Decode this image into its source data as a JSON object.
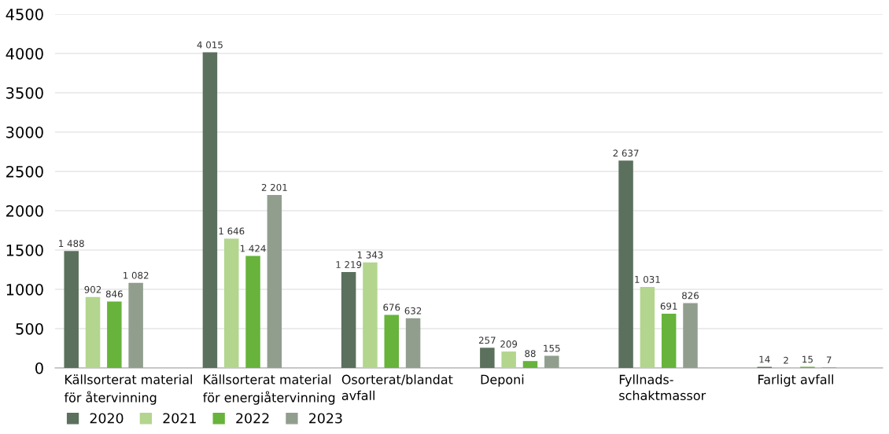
{
  "chart_data": {
    "type": "bar",
    "categories": [
      "Källsorterat material\nför återvinning",
      "Källsorterat material\nför energiåtervinning",
      "Osorterat/blandat\navfall",
      "Deponi",
      "Fyllnads-\nschaktmassor",
      "Farligt avfall"
    ],
    "series": [
      {
        "name": "2020",
        "color": "#5b705d",
        "values": [
          1488,
          4015,
          1219,
          257,
          2637,
          14
        ],
        "value_labels": [
          "1 488",
          "4 015",
          "1 219",
          "257",
          "2 637",
          "14"
        ]
      },
      {
        "name": "2021",
        "color": "#b3d58e",
        "values": [
          902,
          1646,
          1343,
          209,
          1031,
          2
        ],
        "value_labels": [
          "902",
          "1 646",
          "1 343",
          "209",
          "1 031",
          "2"
        ]
      },
      {
        "name": "2022",
        "color": "#67b33b",
        "values": [
          846,
          1424,
          676,
          88,
          691,
          15
        ],
        "value_labels": [
          "846",
          "1 424",
          "676",
          "88",
          "691",
          "15"
        ]
      },
      {
        "name": "2023",
        "color": "#919e8e",
        "values": [
          1082,
          2201,
          632,
          155,
          826,
          7
        ],
        "value_labels": [
          "1 082",
          "2 201",
          "632",
          "155",
          "826",
          "7"
        ]
      }
    ],
    "ylim": [
      0,
      4500
    ],
    "yticks": [
      0,
      500,
      1000,
      1500,
      2000,
      2500,
      3000,
      3500,
      4000,
      4500
    ],
    "grid": "y",
    "legend": "bottom left"
  }
}
